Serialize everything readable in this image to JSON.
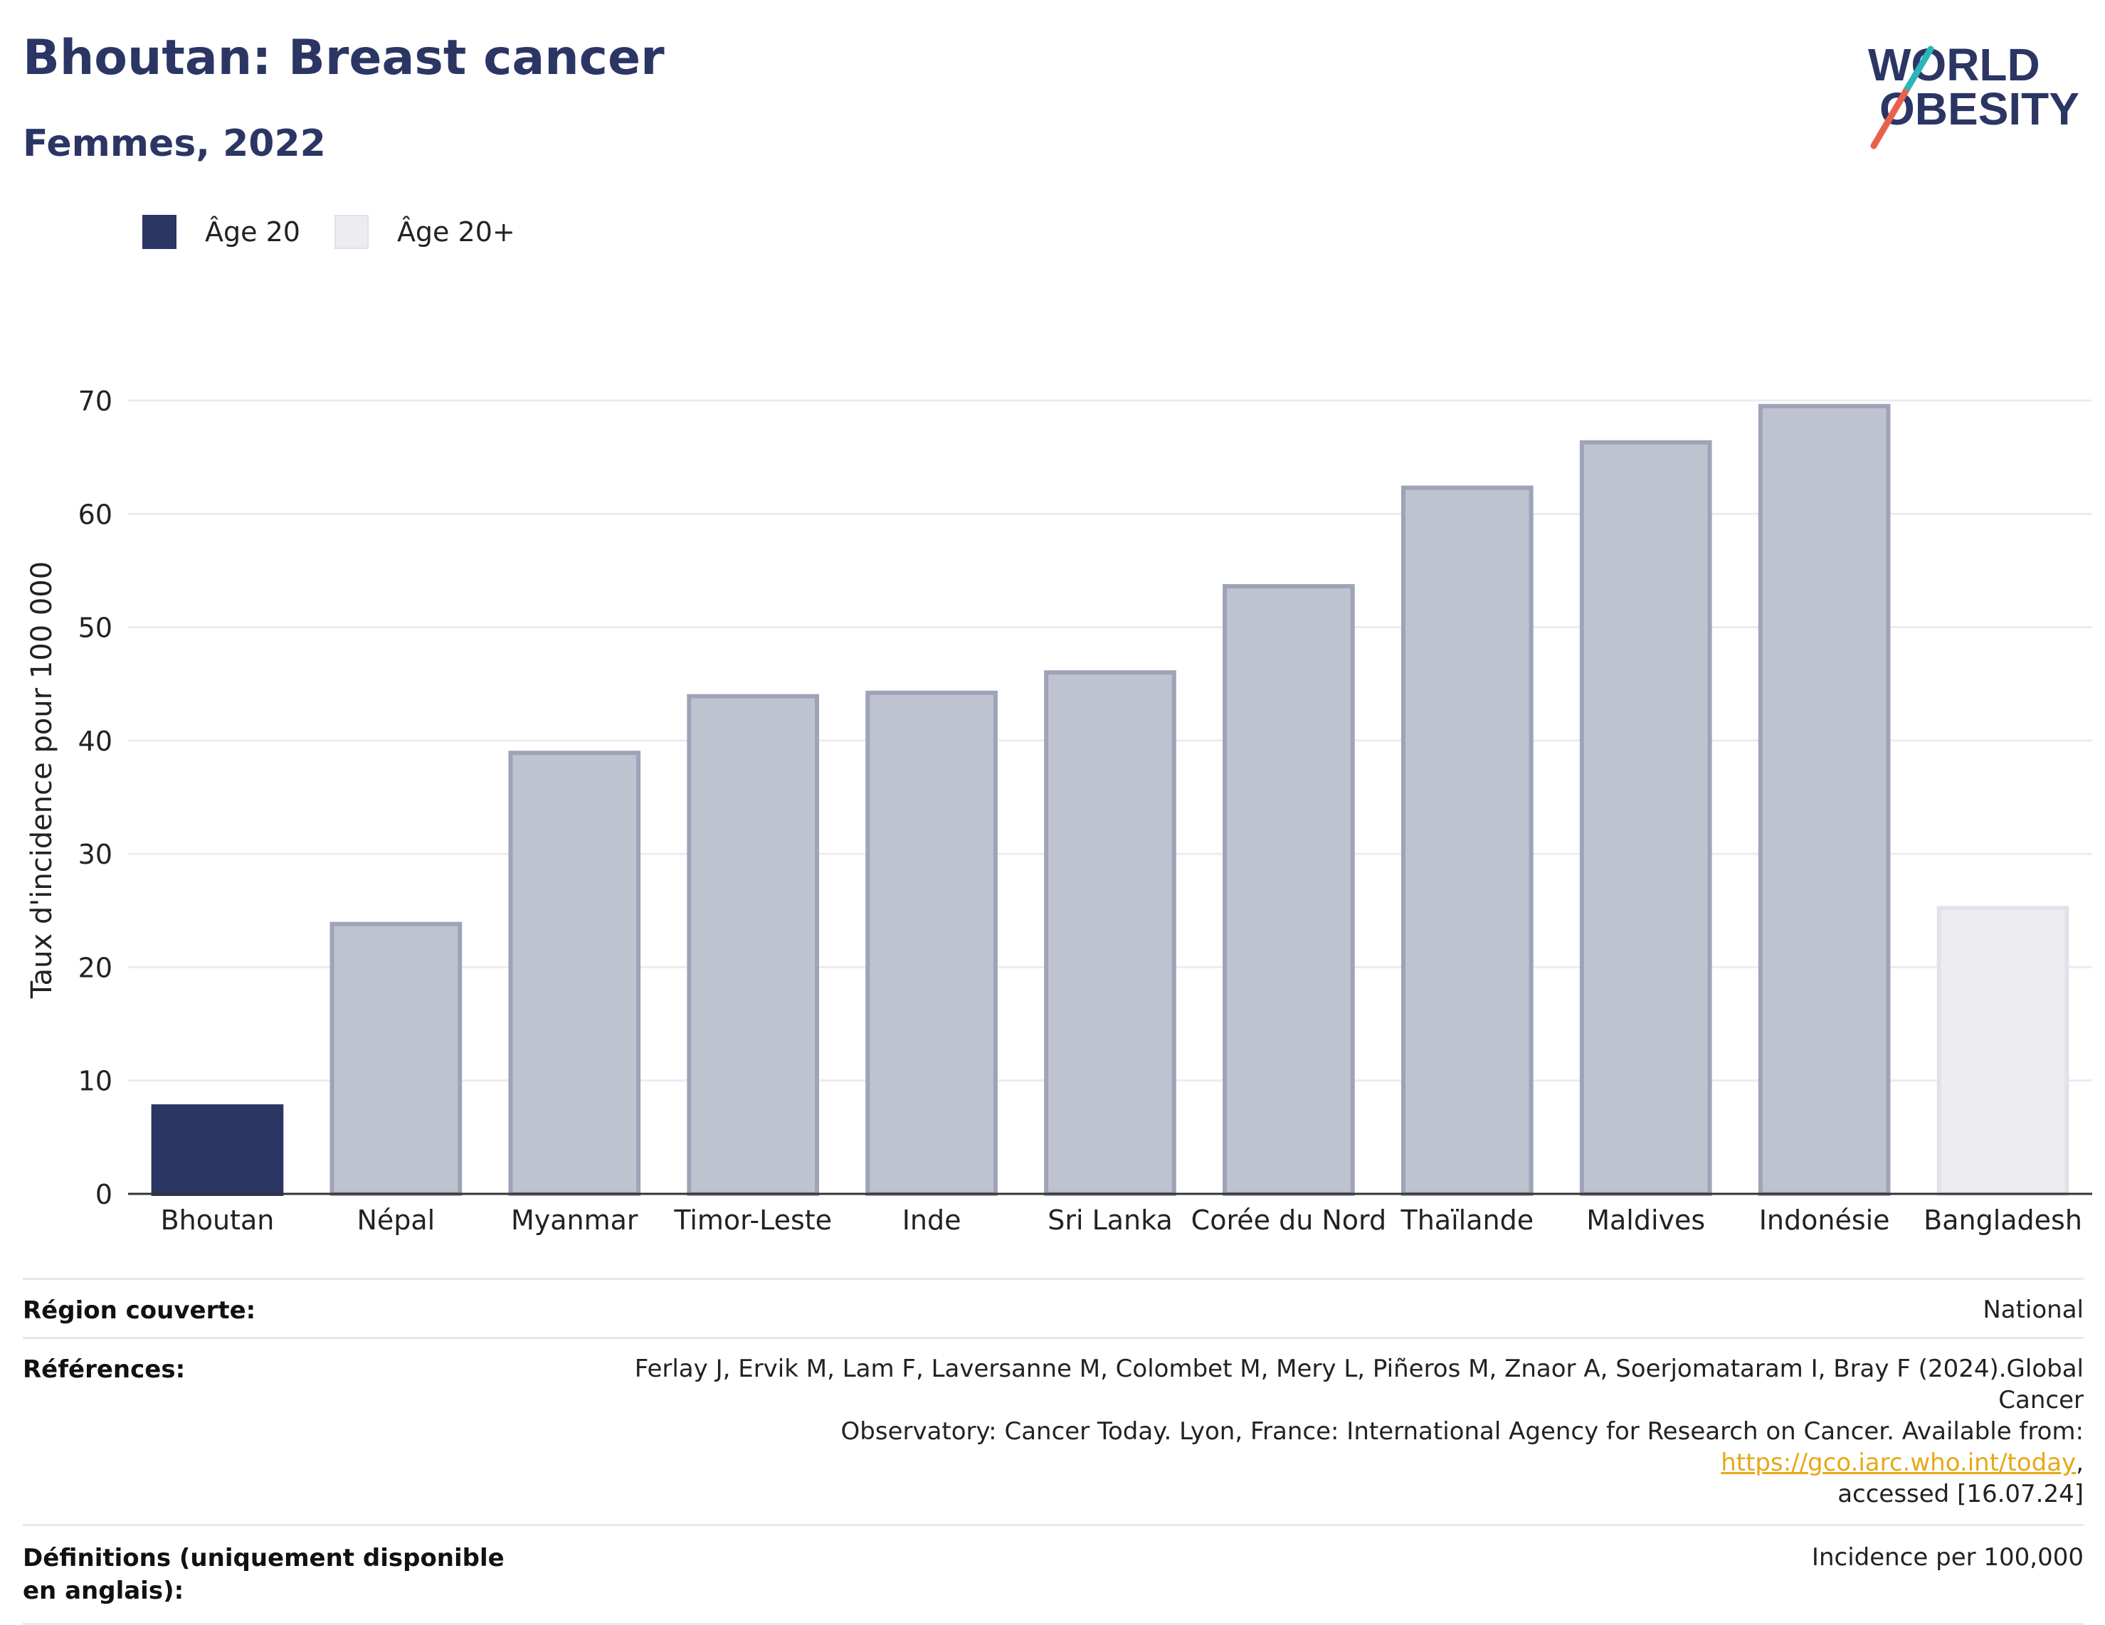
{
  "header": {
    "title": "Bhoutan: Breast cancer",
    "subtitle": "Femmes, 2022"
  },
  "logo": {
    "line1": "WORLD",
    "line2": "OBESITY",
    "colors": [
      "#2b3664",
      "#e8614d",
      "#2bb5b8"
    ]
  },
  "legend": [
    {
      "label": "Âge 20",
      "color": "#2b3664"
    },
    {
      "label": "Âge 20+",
      "color": "#ececf1"
    }
  ],
  "chart_data": {
    "type": "bar",
    "title": "",
    "xlabel": "",
    "ylabel": "Taux d'incidence pour 100 000",
    "ylim": [
      0,
      70
    ],
    "yticks": [
      0,
      10,
      20,
      30,
      40,
      50,
      60,
      70
    ],
    "grid": true,
    "categories": [
      "Bhoutan",
      "Népal",
      "Myanmar",
      "Timor-Leste",
      "Inde",
      "Sri Lanka",
      "Corée du Nord",
      "Thaïlande",
      "Maldives",
      "Indonésie",
      "Bangladesh"
    ],
    "values": [
      7.9,
      24.0,
      39.1,
      44.1,
      44.4,
      46.2,
      53.8,
      62.5,
      66.5,
      69.7,
      25.4
    ],
    "bar_styles": [
      "highlight",
      "comparison",
      "comparison",
      "comparison",
      "comparison",
      "comparison",
      "comparison",
      "comparison",
      "comparison",
      "comparison",
      "age20plus"
    ],
    "style_colors": {
      "highlight": {
        "fill": "#2b3664",
        "stroke": "#2b3664"
      },
      "comparison": {
        "fill": "#bfc3d0",
        "stroke": "#9ea3b7"
      },
      "age20plus": {
        "fill": "#ececf1",
        "stroke": "#e1e2e8"
      }
    }
  },
  "footer": {
    "region_label": "Région couverte:",
    "region_value": "National",
    "references_label": "Références:",
    "references_line1": "Ferlay J, Ervik M, Lam F, Laversanne M, Colombet M, Mery L, Piñeros M, Znaor A, Soerjomataram I, Bray F (2024).Global Cancer",
    "references_line2_pre": "Observatory: Cancer Today. Lyon, France: International Agency for Research on Cancer. Available from: ",
    "references_link": "https://gco.iarc.who.int/today",
    "references_line2_post": ",",
    "references_line3": "accessed [16.07.24]",
    "definitions_label": "Définitions (uniquement disponible en anglais):",
    "definitions_value": "Incidence per 100,000"
  }
}
